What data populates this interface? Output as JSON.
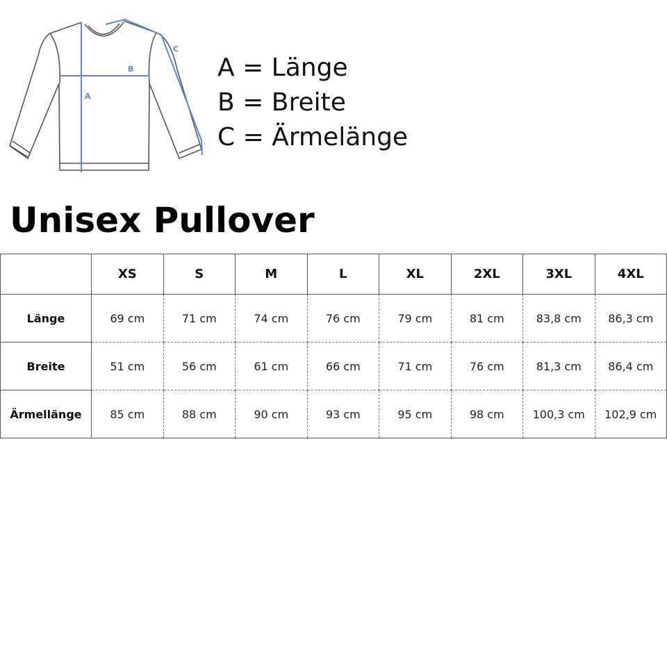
{
  "diagram": {
    "labels": [
      "A",
      "B",
      "C"
    ],
    "accent": "#5b86d9"
  },
  "legend": [
    "A = Länge",
    "B = Breite",
    "C = Ärmelänge"
  ],
  "title": "Unisex Pullover",
  "table": {
    "sizes": [
      "XS",
      "S",
      "M",
      "L",
      "XL",
      "2XL",
      "3XL",
      "4XL"
    ],
    "rows": [
      {
        "label": "Länge",
        "values": [
          "69 cm",
          "71 cm",
          "74 cm",
          "76 cm",
          "79 cm",
          "81 cm",
          "83,8 cm",
          "86,3 cm"
        ]
      },
      {
        "label": "Breite",
        "values": [
          "51 cm",
          "56 cm",
          "61 cm",
          "66 cm",
          "71 cm",
          "76 cm",
          "81,3 cm",
          "86,4 cm"
        ]
      },
      {
        "label": "Ärmellänge",
        "values": [
          "85 cm",
          "88 cm",
          "90 cm",
          "93 cm",
          "95 cm",
          "98 cm",
          "100,3 cm",
          "102,9 cm"
        ]
      }
    ]
  }
}
